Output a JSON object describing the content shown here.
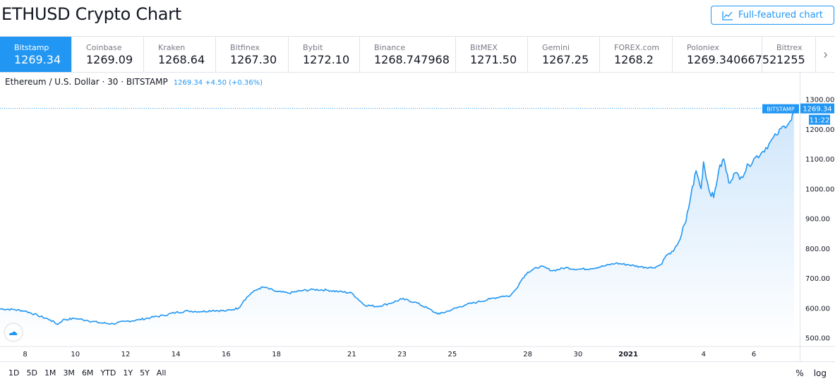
{
  "header": {
    "title": "ETHUSD Crypto Chart",
    "full_featured_label": "Full-featured chart",
    "full_featured_icon": "chart-line-icon"
  },
  "tabs": [
    {
      "name": "Bitstamp",
      "price": "1269.34",
      "active": true
    },
    {
      "name": "Coinbase",
      "price": "1269.09",
      "active": false
    },
    {
      "name": "Kraken",
      "price": "1268.64",
      "active": false
    },
    {
      "name": "Bitfinex",
      "price": "1267.30",
      "active": false
    },
    {
      "name": "Bybit",
      "price": "1272.10",
      "active": false
    },
    {
      "name": "Binance",
      "price": "1268.747968",
      "active": false
    },
    {
      "name": "BitMEX",
      "price": "1271.50",
      "active": false
    },
    {
      "name": "Gemini",
      "price": "1267.25",
      "active": false
    },
    {
      "name": "FOREX.com",
      "price": "1268.2",
      "active": false
    },
    {
      "name": "Poloniex",
      "price": "1269.34066752",
      "active": false
    },
    {
      "name": "Bittrex",
      "price": "1255",
      "active": false
    }
  ],
  "tabs_scroll_icon": "chevron-right-icon",
  "legend": {
    "symbol": "Ethereum / U.S. Dollar · 30 · BITSTAMP",
    "value": "1269.34 +4.50 (+0.36%)"
  },
  "colors": {
    "accent": "#2196f3",
    "line": "#2196f3",
    "area_top": "#cfe6fb",
    "area_bottom": "#ffffff"
  },
  "chart_data": {
    "type": "area",
    "title": "Ethereum / U.S. Dollar · 30 · BITSTAMP",
    "x_ticks": [
      {
        "label": "8",
        "t": 8
      },
      {
        "label": "10",
        "t": 10
      },
      {
        "label": "12",
        "t": 12
      },
      {
        "label": "14",
        "t": 14
      },
      {
        "label": "16",
        "t": 16
      },
      {
        "label": "18",
        "t": 18
      },
      {
        "label": "21",
        "t": 21
      },
      {
        "label": "23",
        "t": 23
      },
      {
        "label": "25",
        "t": 25
      },
      {
        "label": "28",
        "t": 28
      },
      {
        "label": "30",
        "t": 30
      },
      {
        "label": "2021",
        "t": 32,
        "bold": true
      },
      {
        "label": "4",
        "t": 35
      },
      {
        "label": "6",
        "t": 37
      }
    ],
    "x_range": [
      7,
      38.6
    ],
    "y_ticks": [
      500,
      600,
      700,
      800,
      900,
      1000,
      1100,
      1200,
      1300
    ],
    "y_tick_labels": [
      "500.00",
      "600.00",
      "700.00",
      "800.00",
      "900.00",
      "1000.00",
      "1100.00",
      "1200.00",
      "1300.00"
    ],
    "ylim": [
      478,
      1325
    ],
    "x": [
      7.0,
      7.5,
      8.0,
      8.5,
      9.0,
      9.3,
      9.5,
      10.0,
      10.5,
      11.0,
      11.5,
      12.0,
      12.5,
      13.0,
      13.5,
      14.0,
      14.5,
      15.0,
      15.5,
      16.0,
      16.5,
      16.7,
      17.0,
      17.3,
      17.5,
      18.0,
      18.5,
      19.0,
      19.5,
      20.0,
      20.5,
      21.0,
      21.5,
      22.0,
      22.5,
      23.0,
      23.5,
      24.0,
      24.3,
      24.5,
      25.0,
      25.5,
      26.0,
      26.5,
      27.0,
      27.3,
      27.5,
      27.8,
      28.0,
      28.5,
      29.0,
      29.5,
      30.0,
      30.5,
      31.0,
      31.5,
      32.0,
      32.5,
      33.0,
      33.3,
      33.5,
      33.8,
      34.0,
      34.3,
      34.5,
      34.7,
      34.9,
      35.0,
      35.2,
      35.4,
      35.6,
      35.8,
      36.0,
      36.2,
      36.5,
      36.8,
      37.0,
      37.3,
      37.6,
      37.9,
      38.2,
      38.5,
      38.6
    ],
    "y": [
      597,
      595,
      590,
      575,
      560,
      545,
      560,
      565,
      558,
      550,
      547,
      555,
      560,
      568,
      575,
      585,
      590,
      588,
      592,
      590,
      600,
      625,
      650,
      665,
      670,
      655,
      650,
      658,
      662,
      660,
      655,
      650,
      610,
      605,
      615,
      630,
      620,
      600,
      585,
      580,
      595,
      610,
      620,
      630,
      640,
      640,
      660,
      700,
      720,
      740,
      725,
      735,
      730,
      732,
      740,
      750,
      745,
      738,
      735,
      745,
      775,
      790,
      820,
      890,
      980,
      1060,
      1000,
      1090,
      1000,
      970,
      1060,
      1100,
      1020,
      1050,
      1040,
      1080,
      1100,
      1120,
      1150,
      1180,
      1210,
      1230,
      1269
    ]
  },
  "price_labels": {
    "exchange": "BITSTAMP",
    "price": "1269.34",
    "time": "11:22"
  },
  "ranges": [
    "1D",
    "5D",
    "1M",
    "3M",
    "6M",
    "YTD",
    "1Y",
    "5Y",
    "All"
  ],
  "bottom_right": {
    "percent": "%",
    "log": "log"
  },
  "logo_icon": "tradingview-cloud-icon"
}
